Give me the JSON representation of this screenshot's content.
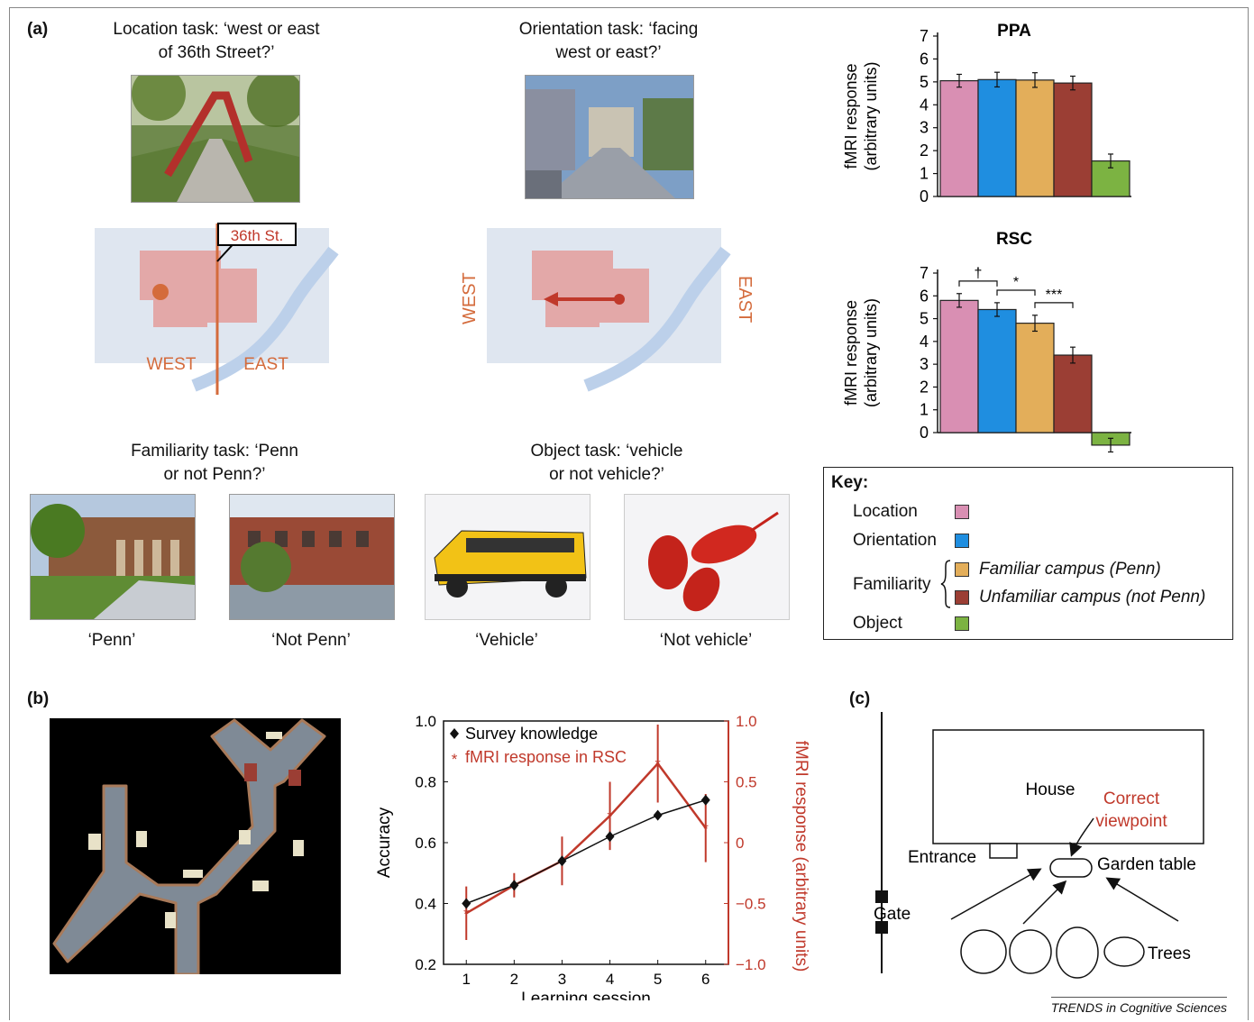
{
  "panel_labels": {
    "a": "(a)",
    "b": "(b)",
    "c": "(c)"
  },
  "tasks": {
    "location": {
      "line1": "Location task: ‘west or east",
      "line2": "of 36th Street?’"
    },
    "orientation": {
      "line1": "Orientation task: ‘facing",
      "line2": "west or east?’"
    },
    "familiarity": {
      "line1": "Familiarity task: ‘Penn",
      "line2": "or not Penn?’"
    },
    "object": {
      "line1": "Object task: ‘vehicle",
      "line2": "or not vehicle?’"
    }
  },
  "maps": {
    "street_label": "36th St.",
    "west": "WEST",
    "east": "EAST"
  },
  "photo_captions": [
    "‘Penn’",
    "‘Not Penn’",
    "‘Vehicle’",
    "‘Not vehicle’"
  ],
  "key": {
    "title": "Key:",
    "location": "Location",
    "orientation": "Orientation",
    "familiarity": "Familiarity",
    "familiar": "Familiar campus (Penn)",
    "unfamiliar": "Unfamiliar campus (not Penn)",
    "object": "Object"
  },
  "colors": {
    "location": "#d98fb3",
    "orientation": "#1f8ee0",
    "familiar": "#e3ae5a",
    "unfamiliar": "#9b3e34",
    "object": "#7cb342",
    "red": "#c0392b"
  },
  "panel_c": {
    "house": "House",
    "correct": "Correct",
    "viewpoint": "viewpoint",
    "entrance": "Entrance",
    "garden_table": "Garden table",
    "gate": "Gate",
    "trees": "Trees"
  },
  "footer": "TRENDS in Cognitive Sciences",
  "chart_data": [
    {
      "type": "bar",
      "title": "PPA",
      "ylabel": "fMRI response (arbitrary units)",
      "ylim": [
        0,
        7
      ],
      "yticks": [
        "0",
        "1",
        "2",
        "3",
        "4",
        "5",
        "6",
        "7"
      ],
      "categories": [
        "Location",
        "Orientation",
        "Familiar campus (Penn)",
        "Unfamiliar campus (not Penn)",
        "Object"
      ],
      "values": [
        5.05,
        5.1,
        5.08,
        4.95,
        1.55
      ],
      "errors": [
        0.28,
        0.32,
        0.32,
        0.3,
        0.3
      ]
    },
    {
      "type": "bar",
      "title": "RSC",
      "ylabel": "fMRI response (arbitrary units)",
      "ylim": [
        -1,
        7
      ],
      "yticks": [
        "0",
        "1",
        "2",
        "3",
        "4",
        "5",
        "6",
        "7"
      ],
      "categories": [
        "Location",
        "Orientation",
        "Familiar campus (Penn)",
        "Unfamiliar campus (not Penn)",
        "Object"
      ],
      "values": [
        5.8,
        5.4,
        4.8,
        3.4,
        -0.55
      ],
      "errors": [
        0.3,
        0.3,
        0.35,
        0.35,
        0.3
      ],
      "significance": [
        "†",
        "*",
        "***"
      ]
    },
    {
      "type": "line",
      "xlabel": "Learning session",
      "ylabel": "Accuracy",
      "y2label": "fMRI response (arbitrary units)",
      "x": [
        1,
        2,
        3,
        4,
        5,
        6
      ],
      "xticks": [
        "1",
        "2",
        "3",
        "4",
        "5",
        "6"
      ],
      "ylim": [
        0.2,
        1.0
      ],
      "yticks": [
        "0.2",
        "0.4",
        "0.6",
        "0.8",
        "1.0"
      ],
      "y2lim": [
        -1.0,
        1.0
      ],
      "y2ticks": [
        "−1.0",
        "−0.5",
        "0",
        "0.5",
        "1.0"
      ],
      "series": [
        {
          "name": "Survey knowledge",
          "axis": "left",
          "values": [
            0.4,
            0.46,
            0.54,
            0.62,
            0.69,
            0.74
          ],
          "errors": [
            0,
            0,
            0,
            0,
            0,
            0
          ]
        },
        {
          "name": "fMRI response in RSC",
          "axis": "right",
          "values": [
            -0.58,
            -0.35,
            -0.15,
            0.22,
            0.65,
            0.12
          ],
          "errors": [
            0.22,
            0.1,
            0.2,
            0.28,
            0.32,
            0.28
          ]
        }
      ]
    }
  ]
}
